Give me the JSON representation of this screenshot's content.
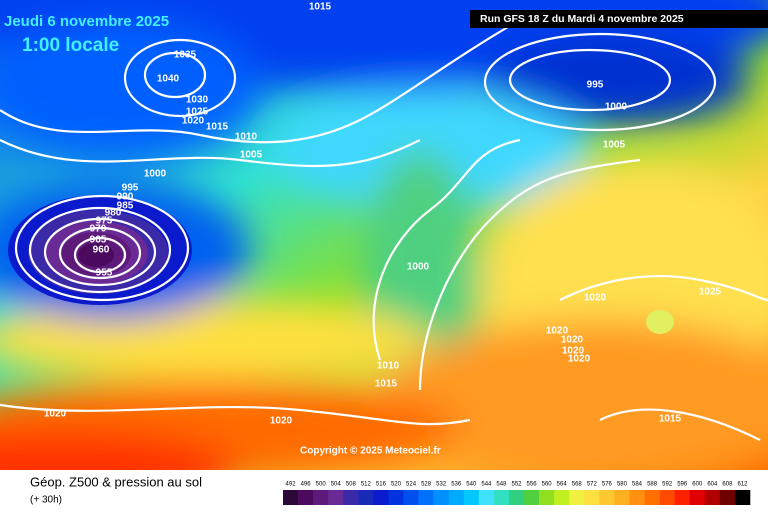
{
  "header": {
    "date": "Jeudi 6 novembre 2025",
    "time": "1:00 locale",
    "run": "Run GFS 18 Z du Mardi 4 novembre 2025"
  },
  "copyright": "Copyright © 2025 Meteociel.fr",
  "legend": {
    "title": "Géop. Z500 & pression au sol",
    "lead": "(+ 30h)",
    "scale": [
      492,
      496,
      500,
      504,
      508,
      512,
      516,
      520,
      524,
      528,
      532,
      536,
      540,
      544,
      548,
      552,
      556,
      560,
      564,
      568,
      572,
      576,
      580,
      584,
      588,
      592,
      596,
      600,
      604,
      608,
      612
    ],
    "colors": [
      "#2b0a3a",
      "#4b0a5e",
      "#5e1a7a",
      "#6a2a96",
      "#3a2aa8",
      "#1a2ab8",
      "#0a1acc",
      "#0032e0",
      "#0050f0",
      "#0070ff",
      "#0090ff",
      "#00aaff",
      "#00c8ff",
      "#40e0ff",
      "#30e0c0",
      "#30d080",
      "#50d040",
      "#90e020",
      "#c0f020",
      "#f0f040",
      "#ffe040",
      "#ffc830",
      "#ffb020",
      "#ff9010",
      "#ff7000",
      "#ff4a00",
      "#ff2000",
      "#e00000",
      "#b00000",
      "#700000",
      "#000000"
    ]
  },
  "isobar_labels": [
    1015,
    1035,
    1040,
    1030,
    1025,
    1020,
    1015,
    1010,
    1005,
    1000,
    995,
    990,
    985,
    980,
    975,
    970,
    965,
    960,
    955,
    995,
    1000,
    1005,
    1000,
    1020,
    1025,
    1020,
    1020,
    1020,
    1020,
    1010,
    1015,
    1020,
    1020,
    1015
  ]
}
